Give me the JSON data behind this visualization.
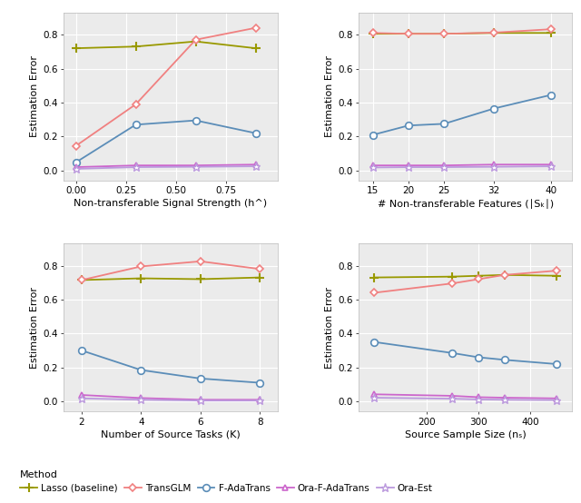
{
  "background_color": "#ebebeb",
  "grid_color": "#ffffff",
  "colors": {
    "lasso": "#999900",
    "transglm": "#F08080",
    "fadatrans": "#5B8DB8",
    "ora_fadatrans": "#CC66CC",
    "ora_est": "#BB99DD"
  },
  "plot1": {
    "xlabel": "Non-transferable Signal Strength (h^)",
    "x": [
      0.0,
      0.3,
      0.6,
      0.9
    ],
    "lasso": [
      0.72,
      0.73,
      0.76,
      0.72
    ],
    "transglm": [
      0.145,
      0.39,
      0.77,
      0.84
    ],
    "fadatrans": [
      0.048,
      0.27,
      0.295,
      0.22
    ],
    "ora_fadatrans": [
      0.02,
      0.03,
      0.03,
      0.035
    ],
    "ora_est": [
      0.01,
      0.02,
      0.022,
      0.025
    ]
  },
  "plot2": {
    "xlabel": "# Non-transferable Features (∣Sₖ∣)",
    "x": [
      15,
      20,
      25,
      32,
      40
    ],
    "lasso": [
      0.805,
      0.805,
      0.805,
      0.81,
      0.81
    ],
    "transglm": [
      0.81,
      0.805,
      0.805,
      0.812,
      0.832
    ],
    "fadatrans": [
      0.21,
      0.265,
      0.275,
      0.365,
      0.445
    ],
    "ora_fadatrans": [
      0.03,
      0.03,
      0.03,
      0.035,
      0.035
    ],
    "ora_est": [
      0.018,
      0.02,
      0.02,
      0.022,
      0.025
    ]
  },
  "plot3": {
    "xlabel": "Number of Source Tasks (K)",
    "x": [
      2,
      4,
      6,
      8
    ],
    "lasso": [
      0.715,
      0.725,
      0.72,
      0.73
    ],
    "transglm": [
      0.715,
      0.795,
      0.825,
      0.78
    ],
    "fadatrans": [
      0.3,
      0.185,
      0.135,
      0.11
    ],
    "ora_fadatrans": [
      0.038,
      0.02,
      0.01,
      0.01
    ],
    "ora_est": [
      0.018,
      0.01,
      0.005,
      0.005
    ]
  },
  "plot4": {
    "xlabel": "Source Sample Size (nₛ)",
    "x": [
      100,
      250,
      300,
      350,
      450
    ],
    "lasso": [
      0.73,
      0.735,
      0.74,
      0.745,
      0.74
    ],
    "transglm": [
      0.64,
      0.695,
      0.72,
      0.745,
      0.77
    ],
    "fadatrans": [
      0.35,
      0.285,
      0.26,
      0.245,
      0.22
    ],
    "ora_fadatrans": [
      0.042,
      0.033,
      0.025,
      0.022,
      0.018
    ],
    "ora_est": [
      0.022,
      0.016,
      0.012,
      0.01,
      0.008
    ]
  },
  "ylabel": "Estimation Error",
  "yticks": [
    0.0,
    0.2,
    0.4,
    0.6,
    0.8
  ],
  "ylim": [
    -0.06,
    0.93
  ],
  "legend": {
    "lasso_label": "Lasso (baseline)",
    "transglm_label": "TransGLM",
    "fadatrans_label": "F-AdaTrans",
    "ora_fadatrans_label": "Ora-F-AdaTrans",
    "ora_est_label": "Ora-Est"
  }
}
